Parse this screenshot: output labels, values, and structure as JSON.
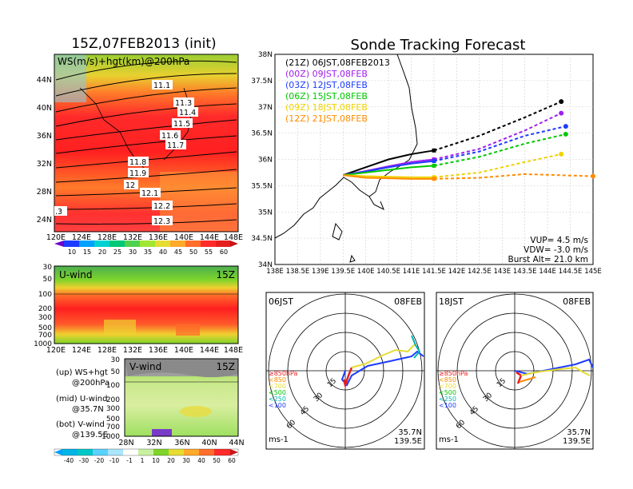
{
  "left": {
    "title": "15Z,07FEB2013 (init)",
    "map_label": "WS(m/s)+hgt(km)@200hPa",
    "lat_ticks": [
      "44N",
      "40N",
      "36N",
      "32N",
      "28N",
      "24N"
    ],
    "lon_ticks": [
      "120E",
      "124E",
      "128E",
      "132E",
      "136E",
      "140E",
      "144E",
      "148E"
    ],
    "contour_labels": [
      "11.1",
      "11.3",
      "11.4",
      "11.5",
      "11.6",
      "11.7",
      "11.8",
      "11.9",
      "12",
      "12.1",
      "12.2",
      "12.3",
      ".3"
    ],
    "ws_colorbar": [
      "10",
      "15",
      "20",
      "25",
      "30",
      "35",
      "40",
      "45",
      "50",
      "55",
      "60"
    ],
    "uwind_label": "U-wind",
    "uwind_time": "15Z",
    "uwind_levels": [
      "30",
      "50",
      "100",
      "200",
      "300",
      "500",
      "700",
      "1000"
    ],
    "uwind_lon_ticks": [
      "120E",
      "124E",
      "128E",
      "132E",
      "136E",
      "140E",
      "144E",
      "148E"
    ],
    "vwind_label": "V-wind",
    "vwind_time": "15Z",
    "vwind_levels": [
      "30",
      "50",
      "100",
      "200",
      "300",
      "500",
      "700",
      "1000"
    ],
    "vwind_lat_ticks": [
      "28N",
      "32N",
      "36N",
      "40N",
      "44N"
    ],
    "vwind_colorbar": [
      "-40",
      "-30",
      "-20",
      "-10",
      "-1",
      "1",
      "10",
      "20",
      "30",
      "40",
      "50",
      "60"
    ],
    "legend": {
      "up1": "(up) WS+hgt",
      "up2": "@200hPa",
      "mid1": "(mid) U-wind",
      "mid2": "@35.7N",
      "bot1": "(bot) V-wind",
      "bot2": "@139.5E"
    }
  },
  "right": {
    "title": "Sonde Tracking Forecast",
    "lat_ticks": [
      "38N",
      "37.5N",
      "37N",
      "36.5N",
      "36N",
      "35.5N",
      "35N",
      "34.5N",
      "34N"
    ],
    "lon_ticks": [
      "138E",
      "138.5E",
      "139E",
      "139.5E",
      "140E",
      "140.5E",
      "141E",
      "141.5E",
      "142E",
      "142.5E",
      "143E",
      "143.5E",
      "144E",
      "144.5E",
      "145E"
    ],
    "params": {
      "vup": "VUP= 4.5 m/s",
      "vdw": "VDW= -3.0 m/s",
      "burst": "Burst Alt= 21.0 km"
    },
    "polar1": {
      "time": "06JST",
      "date": "08FEB",
      "lat": "35.7N",
      "lon": "139.5E",
      "unit": "ms-1",
      "rings": [
        "15",
        "30",
        "45",
        "60"
      ]
    },
    "polar2": {
      "time": "18JST",
      "date": "08FEB",
      "lat": "35.7N",
      "lon": "139.5E",
      "unit": "ms-1",
      "rings": [
        "15",
        "30",
        "45",
        "60"
      ]
    },
    "pressure_legend": [
      "≥850hPa",
      "<850",
      "<700",
      "<500",
      "<250",
      "<100"
    ]
  },
  "chart_data": {
    "type": "line",
    "title": "Sonde Tracking Forecast",
    "xlim": [
      138,
      145
    ],
    "ylim": [
      34,
      38
    ],
    "series": [
      {
        "name": "(21Z) 06JST,08FEB2013",
        "color": "#000000",
        "x": [
          139.5,
          140.0,
          140.5,
          141.0,
          141.5,
          142.5,
          143.5,
          144.3
        ],
        "y": [
          35.7,
          35.85,
          36.0,
          36.1,
          36.17,
          36.45,
          36.8,
          37.1
        ]
      },
      {
        "name": "(00Z) 09JST,08FEB",
        "color": "#a020f0",
        "x": [
          139.5,
          140.0,
          140.5,
          141.0,
          141.5,
          142.5,
          143.5,
          144.3
        ],
        "y": [
          35.7,
          35.78,
          35.87,
          35.95,
          36.0,
          36.2,
          36.55,
          36.88
        ]
      },
      {
        "name": "(03Z) 12JST,08FEB",
        "color": "#1e3cff",
        "x": [
          139.5,
          140.0,
          140.5,
          141.0,
          141.5,
          142.5,
          143.5,
          144.4
        ],
        "y": [
          35.7,
          35.77,
          35.85,
          35.92,
          35.97,
          36.15,
          36.45,
          36.63
        ]
      },
      {
        "name": "(06Z) 15JST,08FEB",
        "color": "#00c800",
        "x": [
          139.5,
          140.0,
          140.5,
          141.0,
          141.5,
          142.5,
          143.5,
          144.4
        ],
        "y": [
          35.7,
          35.75,
          35.8,
          35.85,
          35.88,
          36.05,
          36.3,
          36.48
        ]
      },
      {
        "name": "(09Z) 18JST,08FEB",
        "color": "#f0d200",
        "x": [
          139.5,
          140.0,
          140.5,
          141.0,
          141.5,
          142.5,
          143.5,
          144.3
        ],
        "y": [
          35.7,
          35.68,
          35.67,
          35.66,
          35.66,
          35.75,
          35.95,
          36.1
        ]
      },
      {
        "name": "(12Z) 21JST,08FEB",
        "color": "#ff8c00",
        "x": [
          139.5,
          140.0,
          140.5,
          141.0,
          141.5,
          142.5,
          143.5,
          145.0
        ],
        "y": [
          35.7,
          35.65,
          35.64,
          35.63,
          35.63,
          35.65,
          35.72,
          35.68
        ]
      }
    ]
  }
}
